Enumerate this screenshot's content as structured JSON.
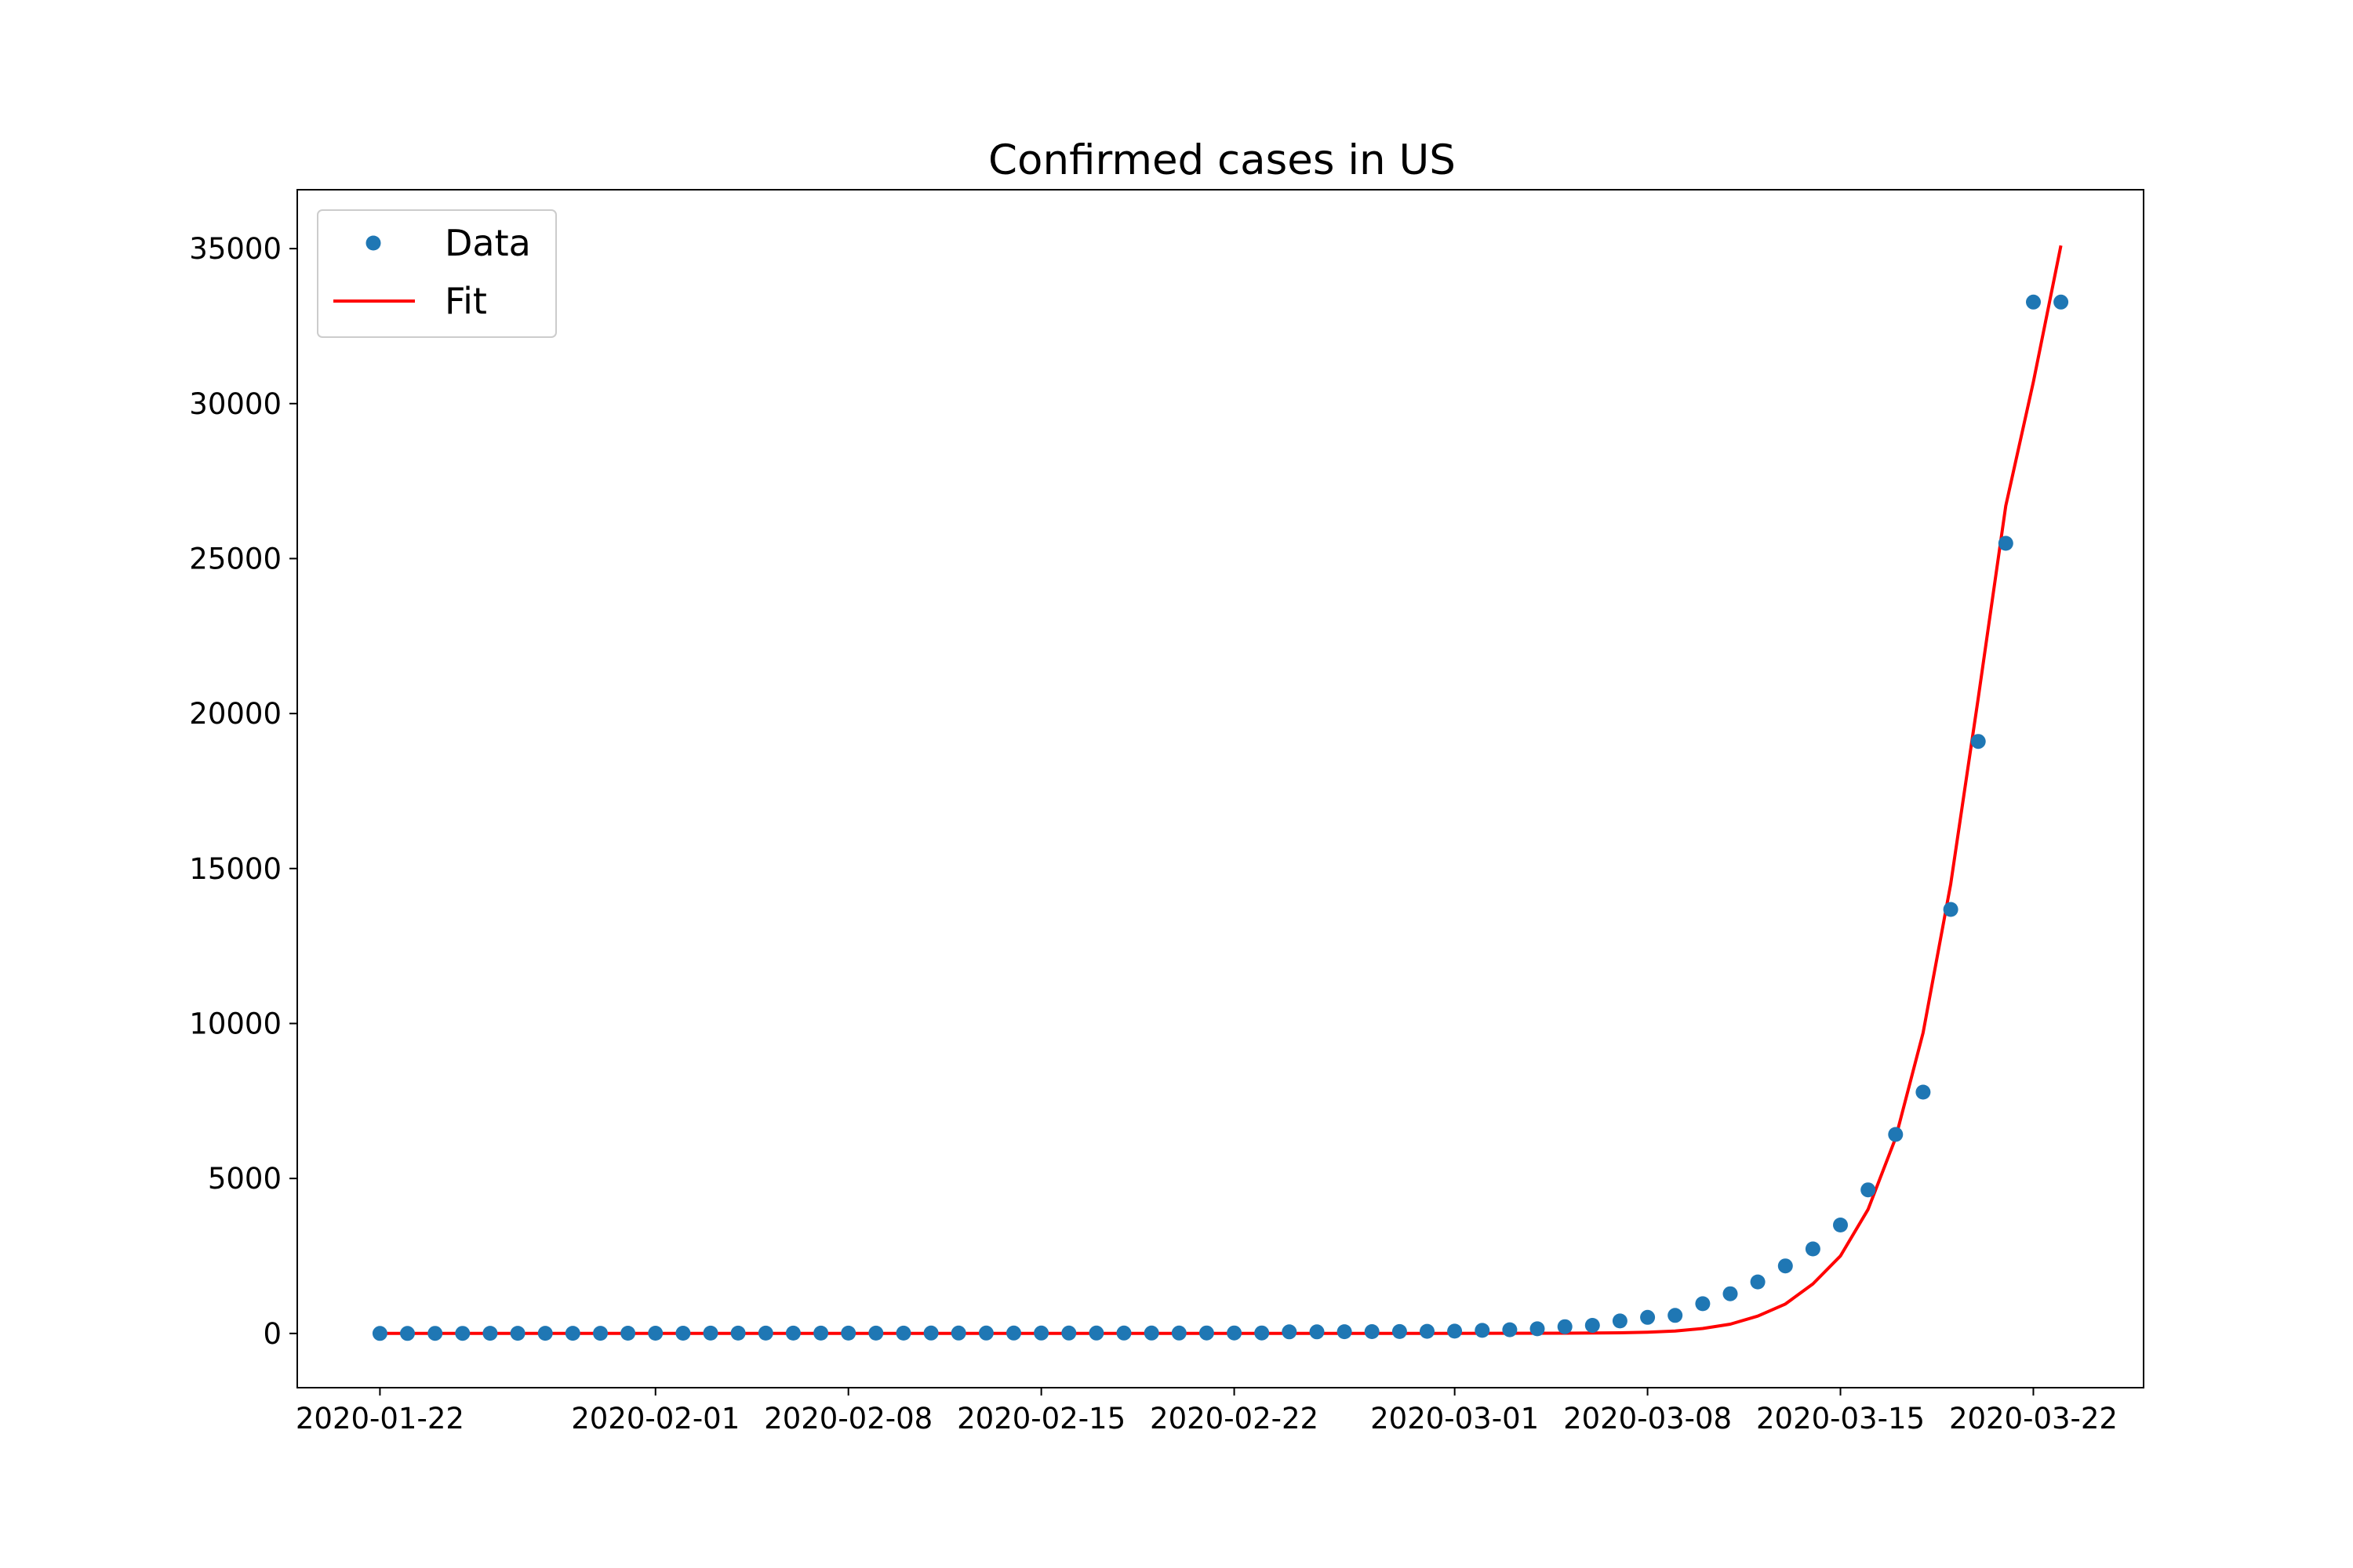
{
  "chart_data": {
    "type": "line",
    "title": "Confirmed cases in US",
    "xlabel": "",
    "ylabel": "",
    "x_ticks": [
      "2020-01-22",
      "2020-02-01",
      "2020-02-08",
      "2020-02-15",
      "2020-02-22",
      "2020-03-01",
      "2020-03-08",
      "2020-03-15",
      "2020-03-22"
    ],
    "y_ticks": [
      0,
      5000,
      10000,
      15000,
      20000,
      25000,
      30000,
      35000
    ],
    "xlim": [
      "2020-01-19",
      "2020-03-26"
    ],
    "ylim": [
      -1750,
      36900
    ],
    "grid": false,
    "legend": {
      "position": "top-left",
      "entries": [
        "Data",
        "Fit"
      ]
    },
    "colors": {
      "data": "#1f77b4",
      "fit": "#ff0000"
    },
    "series": [
      {
        "name": "Data",
        "style": "markers",
        "x": [
          "2020-01-22",
          "2020-01-23",
          "2020-01-24",
          "2020-01-25",
          "2020-01-26",
          "2020-01-27",
          "2020-01-28",
          "2020-01-29",
          "2020-01-30",
          "2020-01-31",
          "2020-02-01",
          "2020-02-02",
          "2020-02-03",
          "2020-02-04",
          "2020-02-05",
          "2020-02-06",
          "2020-02-07",
          "2020-02-08",
          "2020-02-09",
          "2020-02-10",
          "2020-02-11",
          "2020-02-12",
          "2020-02-13",
          "2020-02-14",
          "2020-02-15",
          "2020-02-16",
          "2020-02-17",
          "2020-02-18",
          "2020-02-19",
          "2020-02-20",
          "2020-02-21",
          "2020-02-22",
          "2020-02-23",
          "2020-02-24",
          "2020-02-25",
          "2020-02-26",
          "2020-02-27",
          "2020-02-28",
          "2020-02-29",
          "2020-03-01",
          "2020-03-02",
          "2020-03-03",
          "2020-03-04",
          "2020-03-05",
          "2020-03-06",
          "2020-03-07",
          "2020-03-08",
          "2020-03-09",
          "2020-03-10",
          "2020-03-11",
          "2020-03-12",
          "2020-03-13",
          "2020-03-14",
          "2020-03-15",
          "2020-03-16",
          "2020-03-17",
          "2020-03-18",
          "2020-03-19",
          "2020-03-20",
          "2020-03-21",
          "2020-03-22",
          "2020-03-23"
        ],
        "values": [
          1,
          1,
          2,
          2,
          5,
          5,
          5,
          5,
          5,
          7,
          8,
          8,
          11,
          11,
          11,
          11,
          11,
          11,
          11,
          11,
          12,
          12,
          13,
          13,
          13,
          13,
          13,
          13,
          13,
          13,
          15,
          15,
          15,
          51,
          51,
          57,
          58,
          60,
          68,
          74,
          98,
          118,
          149,
          217,
          262,
          402,
          518,
          583,
          959,
          1281,
          1663,
          2179,
          2727,
          3499,
          4632,
          6421,
          7786,
          13680,
          19101,
          25493,
          33276,
          33276
        ]
      },
      {
        "name": "Fit",
        "style": "line",
        "x": [
          "2020-01-22",
          "2020-02-15",
          "2020-02-29",
          "2020-03-05",
          "2020-03-07",
          "2020-03-08",
          "2020-03-09",
          "2020-03-10",
          "2020-03-11",
          "2020-03-12",
          "2020-03-13",
          "2020-03-14",
          "2020-03-15",
          "2020-03-16",
          "2020-03-17",
          "2020-03-18",
          "2020-03-19",
          "2020-03-20",
          "2020-03-21",
          "2020-03-22",
          "2020-03-23"
        ],
        "values": [
          0,
          0,
          0,
          8,
          20,
          40,
          80,
          160,
          300,
          560,
          950,
          1600,
          2500,
          4000,
          6300,
          9700,
          14500,
          20500,
          26700,
          30700,
          35100
        ]
      }
    ]
  }
}
